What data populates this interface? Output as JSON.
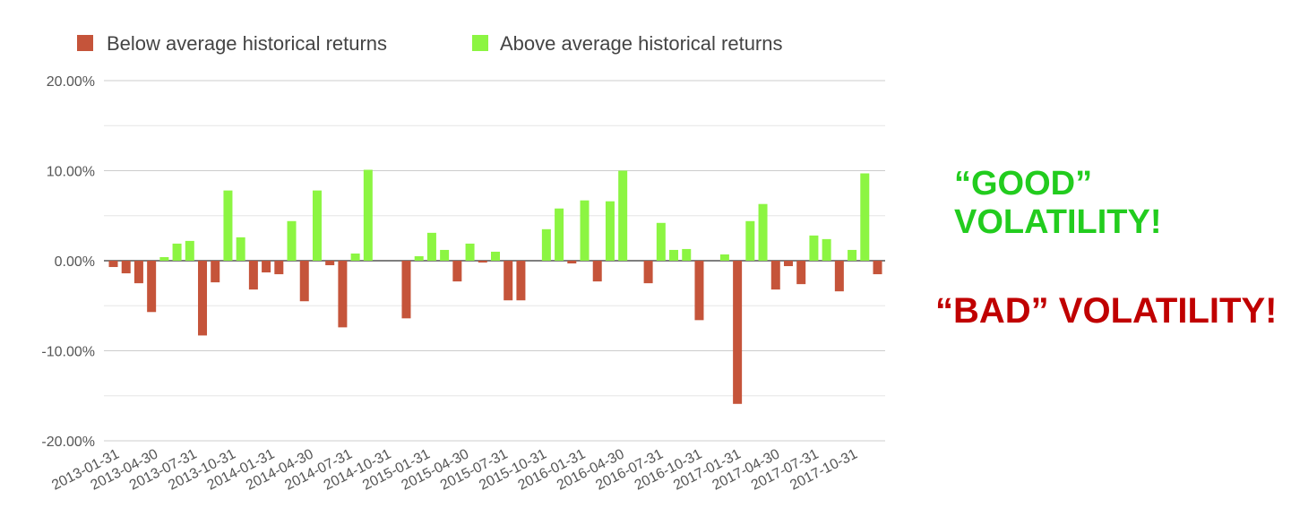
{
  "chart_data": {
    "type": "bar",
    "series": [
      {
        "name": "Below average historical returns",
        "color": "#c5543a"
      },
      {
        "name": "Above average historical returns",
        "color": "#8cf542"
      }
    ],
    "ylim": [
      -20,
      20
    ],
    "yticks": [
      {
        "value": 20,
        "label": "20.00%"
      },
      {
        "value": 10,
        "label": "10.00%"
      },
      {
        "value": 0,
        "label": "0.00%"
      },
      {
        "value": -10,
        "label": "-10.00%"
      },
      {
        "value": -20,
        "label": "-20.00%"
      }
    ],
    "grid": true,
    "legend_position": "top",
    "x_tick_labels": [
      "2013-01-31",
      "2013-04-30",
      "2013-07-31",
      "2013-10-31",
      "2014-01-31",
      "2014-04-30",
      "2014-07-31",
      "2014-10-31",
      "2015-01-31",
      "2015-04-30",
      "2015-07-31",
      "2015-10-31",
      "2016-01-31",
      "2016-04-30",
      "2016-07-31",
      "2016-10-31",
      "2017-01-31",
      "2017-04-30",
      "2017-07-31",
      "2017-10-31"
    ],
    "values": [
      -0.7,
      -1.4,
      -2.5,
      -5.7,
      0.4,
      1.9,
      2.2,
      -8.3,
      -2.4,
      7.8,
      2.6,
      -3.2,
      -1.3,
      -1.5,
      4.4,
      -4.5,
      7.8,
      -0.5,
      -7.4,
      0.8,
      10.1,
      0,
      0,
      -6.4,
      0.5,
      3.1,
      1.2,
      -2.3,
      1.9,
      -0.2,
      1.0,
      -4.4,
      -4.4,
      0,
      3.5,
      5.8,
      -0.3,
      6.7,
      -2.3,
      6.6,
      10.0,
      0,
      -2.5,
      4.2,
      1.2,
      1.3,
      -6.6,
      0,
      0.7,
      -15.9,
      4.4,
      6.3,
      -3.2,
      -0.6,
      -2.6,
      2.8,
      2.4,
      -3.4,
      1.2,
      9.7,
      -1.5
    ],
    "threshold": 0
  },
  "annotations": {
    "good": {
      "line1": "“GOOD”",
      "line2": "VOLATILITY!",
      "color": "#22cc1e"
    },
    "bad": {
      "text": "“BAD” VOLATILITY!",
      "color": "#c00000"
    }
  }
}
